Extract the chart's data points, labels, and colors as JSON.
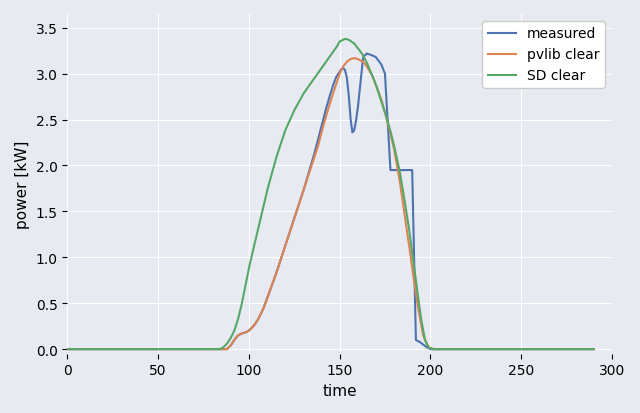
{
  "title": "",
  "xlabel": "time",
  "ylabel": "power [kW]",
  "xlim": [
    0,
    290
  ],
  "ylim": [
    -0.05,
    3.65
  ],
  "xticks": [
    0,
    50,
    100,
    150,
    200,
    250,
    300
  ],
  "yticks": [
    0.0,
    0.5,
    1.0,
    1.5,
    2.0,
    2.5,
    3.0,
    3.5
  ],
  "bg_color": "#e8eaf2",
  "grid_color": "#ffffff",
  "measured_color": "#4c72b0",
  "pvlib_color": "#dd8452",
  "sd_color": "#55a868",
  "legend_labels": [
    "measured",
    "pvlib clear",
    "SD clear"
  ],
  "figsize": [
    6.4,
    4.14
  ],
  "dpi": 100
}
